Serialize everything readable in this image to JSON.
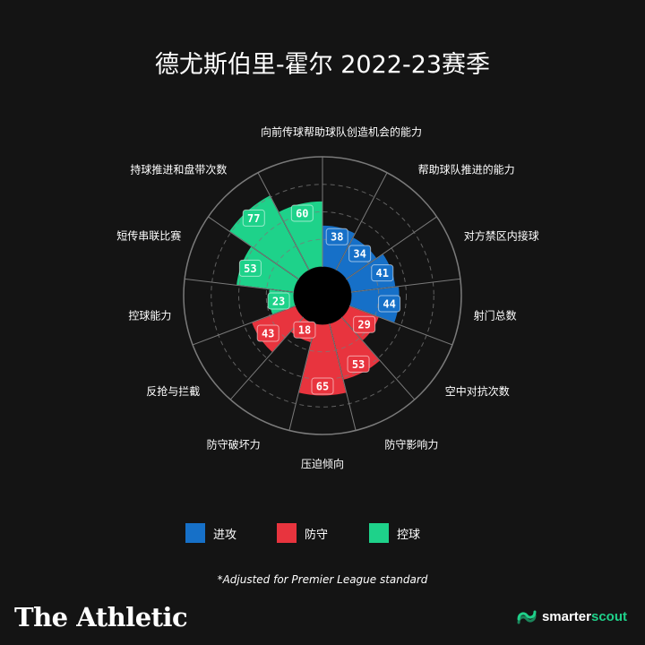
{
  "title": "德尤斯伯里-霍尔 2022-23赛季",
  "colors": {
    "background": "#141414",
    "attack": "#1670c8",
    "defense": "#e8343e",
    "possession": "#1ed28a",
    "grid": "#7a7a7a",
    "center": "#000000"
  },
  "legend": [
    {
      "label": "进攻",
      "color": "#1670c8"
    },
    {
      "label": "防守",
      "color": "#e8343e"
    },
    {
      "label": "控球",
      "color": "#1ed28a"
    }
  ],
  "footnote": "*Adjusted for Premier League standard",
  "brand": "The Athletic",
  "partner": {
    "prefix": "smarter",
    "suffix": "scout",
    "icon": "smarterscout-logo-icon"
  },
  "chart_data": {
    "type": "polar-bar",
    "title": "德尤斯伯里-霍尔 2022-23赛季",
    "rlim": [
      0,
      100
    ],
    "grid": true,
    "legend_position": "bottom",
    "categories": [
      "帮助球队创造机会的能力",
      "帮助球队推进的能力",
      "对方禁区内接球",
      "射门总数",
      "空中对抗次数",
      "防守影响力",
      "压迫倾向",
      "防守破坏力",
      "反抢与拦截",
      "控球能力",
      "短传串联比赛",
      "持球推进和盘带次数",
      "向前传球"
    ],
    "groups": [
      "进攻",
      "进攻",
      "进攻",
      "进攻",
      "防守",
      "防守",
      "防守",
      "防守",
      "防守",
      "控球",
      "控球",
      "控球",
      "控球"
    ],
    "values": [
      38,
      34,
      41,
      44,
      29,
      53,
      65,
      18,
      43,
      23,
      53,
      77,
      60
    ]
  }
}
